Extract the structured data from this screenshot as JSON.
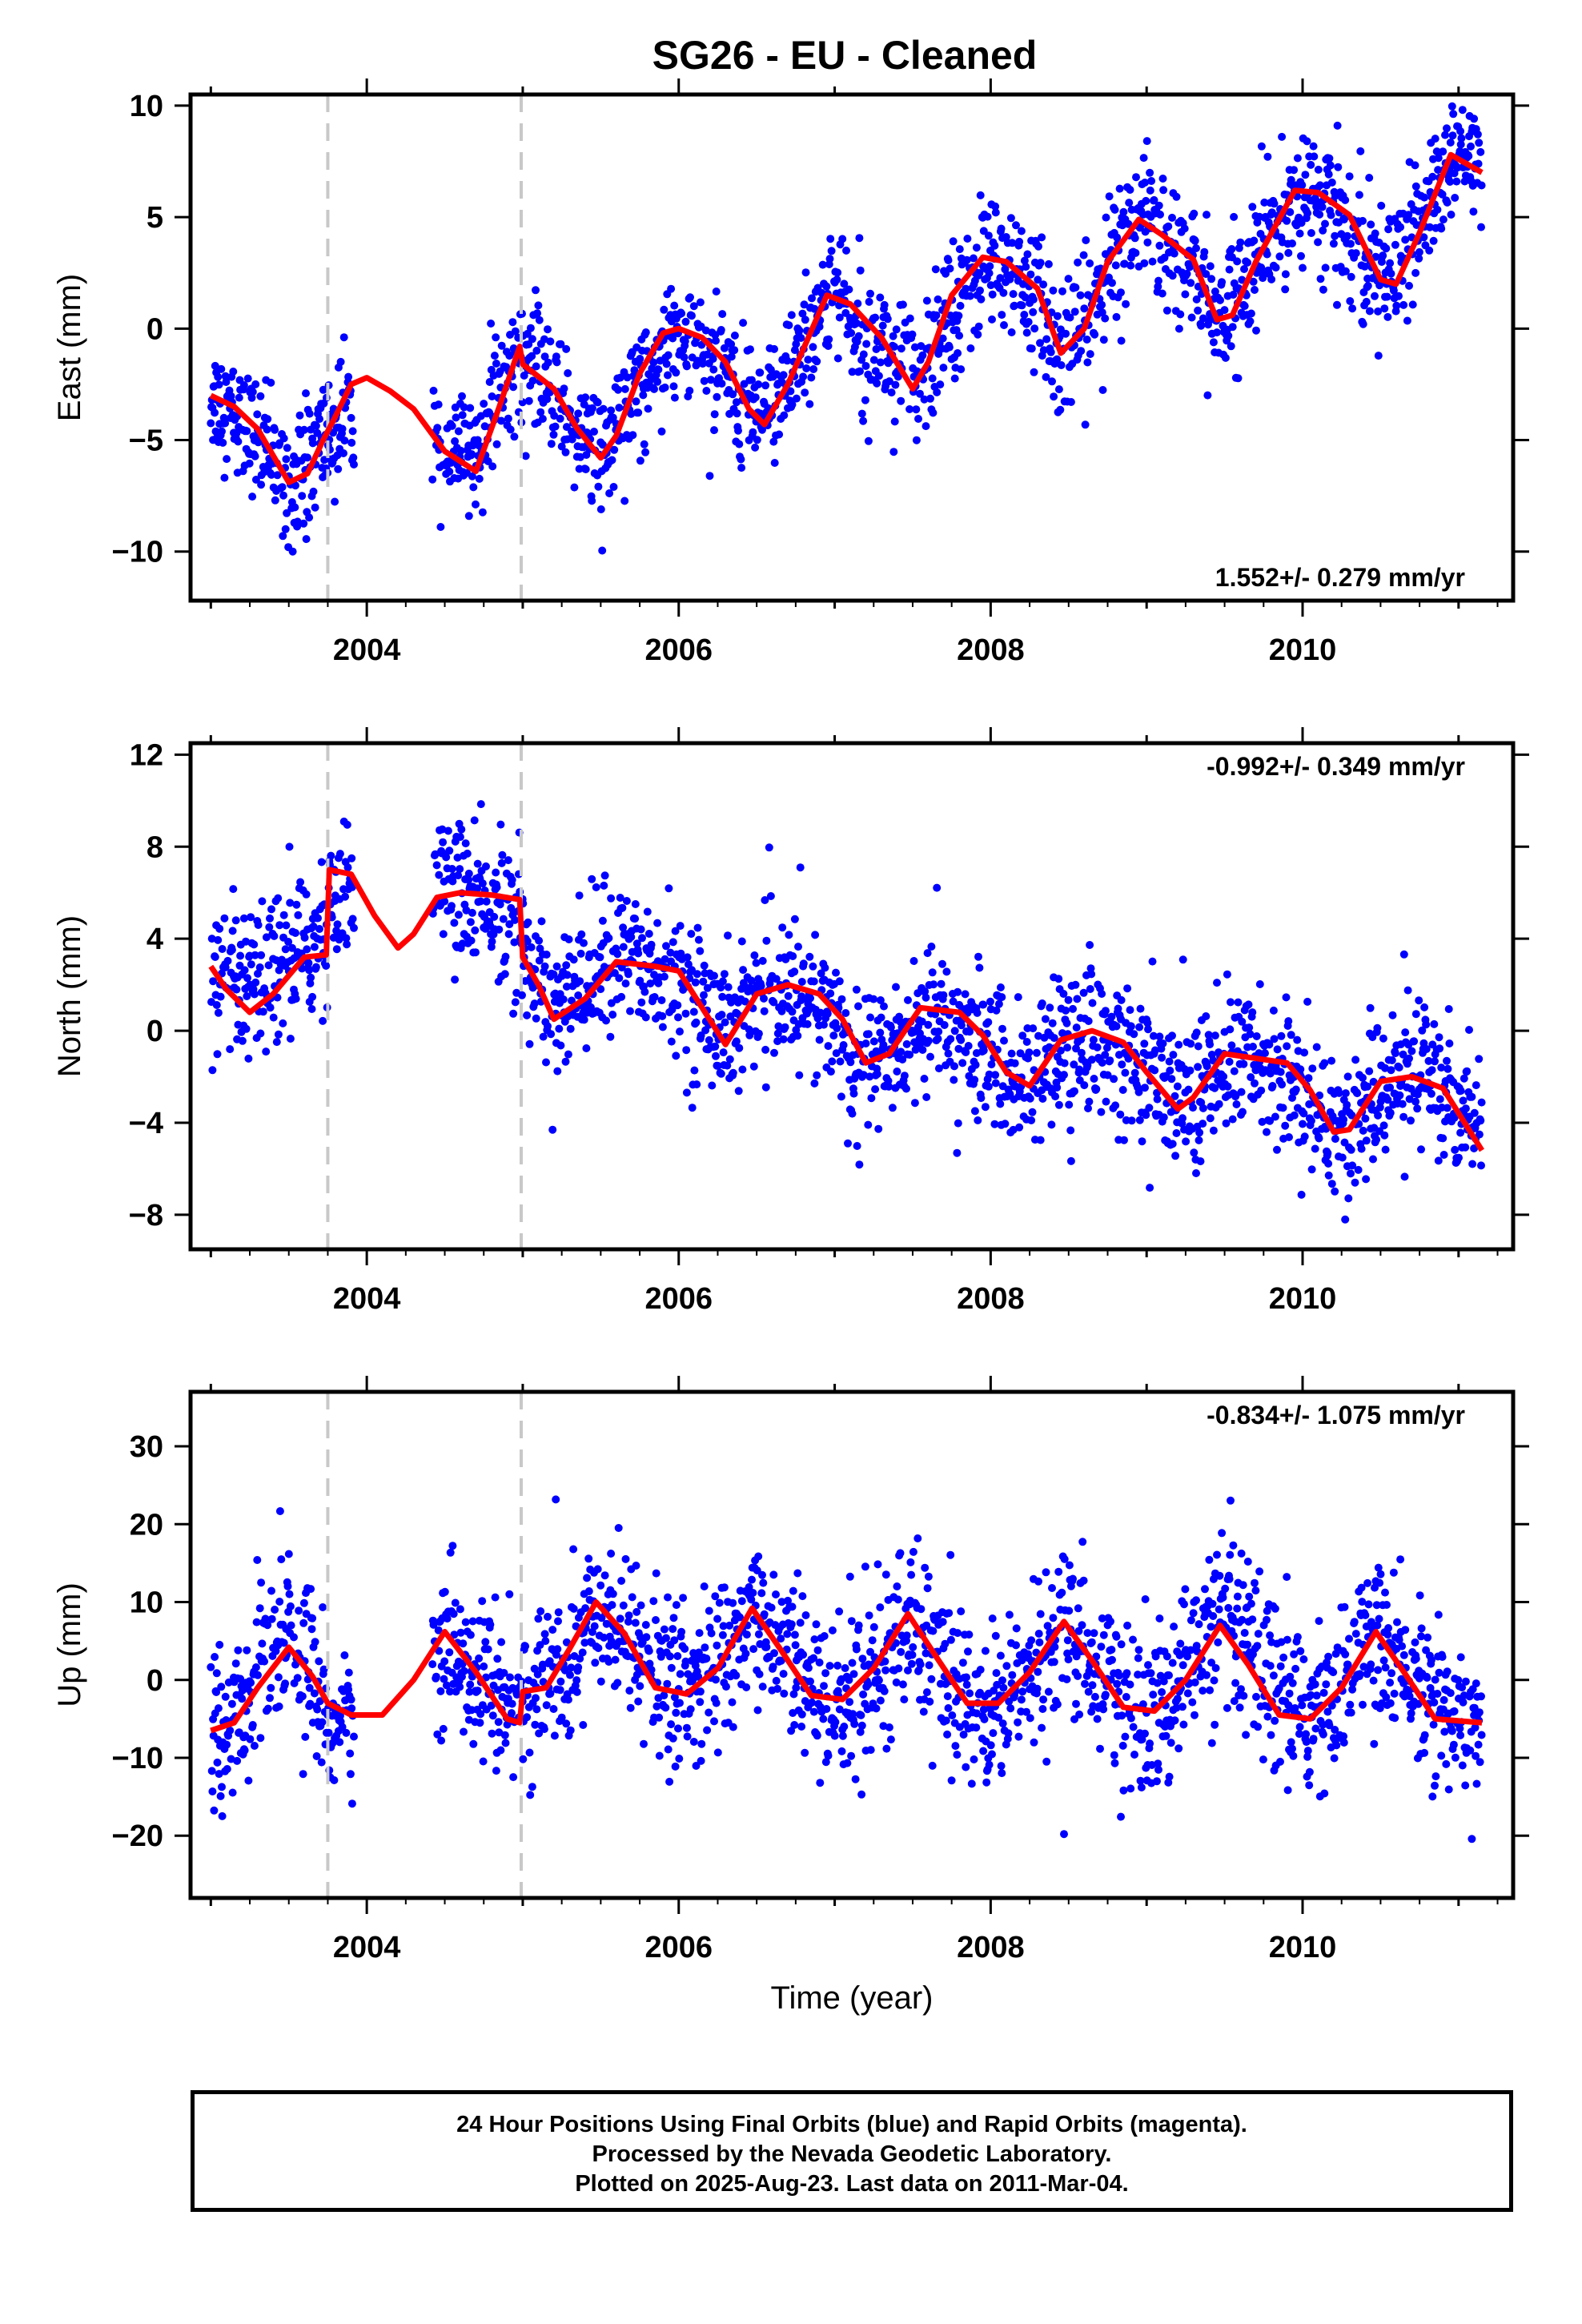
{
  "title": "SG26  - EU - Cleaned",
  "colors": {
    "points": "#0000ff",
    "fit": "#ff0000",
    "breaks": "#c8c8c8",
    "frame": "#000000"
  },
  "footer": {
    "line1": "24 Hour Positions Using Final Orbits (blue) and Rapid Orbits (magenta).",
    "line2": "Processed by the Nevada Geodetic Laboratory.",
    "line3": "Plotted on 2025-Aug-23. Last data on 2011-Mar-04."
  },
  "chart_data": [
    {
      "type": "scatter",
      "component": "east",
      "title": "SG26  - EU - Cleaned",
      "xlabel": "",
      "ylabel": "East (mm)",
      "xlim": [
        2002.87,
        2011.35
      ],
      "ylim": [
        -12.2,
        10.5
      ],
      "xticks": [
        2004,
        2006,
        2008,
        2010
      ],
      "yticks": [
        -10,
        -5,
        0,
        5,
        10
      ],
      "rate_label": "1.552+/- 0.279 mm/yr",
      "rate_position": "bottom-right",
      "break_lines": [
        2003.75,
        2004.99
      ],
      "fit_curve": {
        "x": [
          2003.0,
          2003.15,
          2003.3,
          2003.5,
          2003.62,
          2003.72,
          2003.78,
          2003.9,
          2004.0,
          2004.15,
          2004.3,
          2004.5,
          2004.7,
          2004.85,
          2004.98,
          2005.0,
          2005.2,
          2005.35,
          2005.5,
          2005.6,
          2005.75,
          2005.9,
          2006.0,
          2006.15,
          2006.3,
          2006.45,
          2006.55,
          2006.7,
          2006.95,
          2007.1,
          2007.3,
          2007.5,
          2007.6,
          2007.75,
          2007.95,
          2008.1,
          2008.3,
          2008.45,
          2008.6,
          2008.75,
          2008.95,
          2009.1,
          2009.3,
          2009.45,
          2009.55,
          2009.7,
          2009.95,
          2010.1,
          2010.3,
          2010.5,
          2010.6,
          2010.75,
          2010.95,
          2011.15
        ],
        "y": [
          -3.0,
          -3.5,
          -4.5,
          -6.9,
          -6.5,
          -5.0,
          -4.2,
          -2.5,
          -2.2,
          -2.8,
          -3.6,
          -5.5,
          -6.4,
          -3.5,
          -0.8,
          -1.6,
          -2.7,
          -4.5,
          -5.8,
          -4.8,
          -2.0,
          -0.2,
          0.0,
          -0.4,
          -1.5,
          -3.6,
          -4.3,
          -2.5,
          1.5,
          1.1,
          -0.4,
          -2.7,
          -1.5,
          1.5,
          3.2,
          3.0,
          1.8,
          -1.1,
          0.0,
          3.0,
          4.9,
          4.2,
          3.1,
          0.4,
          0.6,
          3.0,
          6.2,
          6.1,
          5.1,
          2.2,
          2.0,
          4.3,
          7.8,
          7.0
        ]
      },
      "points_by_year": [
        {
          "year": 2003.0,
          "mean": -3.0,
          "spread": 1.2
        },
        {
          "year": 2003.5,
          "mean": -7.0,
          "spread": 1.3
        },
        {
          "year": 2003.7,
          "mean": -5.0,
          "spread": 1.5
        },
        {
          "year": 2004.5,
          "mean": -6.4,
          "spread": 1.2
        },
        {
          "year": 2005.0,
          "mean": -0.8,
          "spread": 1.3
        },
        {
          "year": 2005.5,
          "mean": -5.8,
          "spread": 1.5
        },
        {
          "year": 2006.0,
          "mean": 0.0,
          "spread": 1.3
        },
        {
          "year": 2006.5,
          "mean": -4.2,
          "spread": 1.4
        },
        {
          "year": 2007.0,
          "mean": 1.6,
          "spread": 1.5
        },
        {
          "year": 2007.5,
          "mean": -2.5,
          "spread": 1.5
        },
        {
          "year": 2008.0,
          "mean": 3.2,
          "spread": 1.5
        },
        {
          "year": 2008.5,
          "mean": -1.0,
          "spread": 1.5
        },
        {
          "year": 2009.0,
          "mean": 4.8,
          "spread": 1.5
        },
        {
          "year": 2009.5,
          "mean": 0.4,
          "spread": 1.5
        },
        {
          "year": 2010.0,
          "mean": 6.2,
          "spread": 1.4
        },
        {
          "year": 2010.5,
          "mean": 2.0,
          "spread": 1.5
        },
        {
          "year": 2011.0,
          "mean": 7.8,
          "spread": 1.3
        }
      ]
    },
    {
      "type": "scatter",
      "component": "north",
      "title": "",
      "xlabel": "",
      "ylabel": "North (mm)",
      "xlim": [
        2002.87,
        2011.35
      ],
      "ylim": [
        -9.5,
        12.5
      ],
      "xticks": [
        2004,
        2006,
        2008,
        2010
      ],
      "yticks": [
        -8,
        -4,
        0,
        4,
        8,
        12
      ],
      "rate_label": "-0.992+/- 0.349 mm/yr",
      "rate_position": "top-right",
      "break_lines": [
        2003.75,
        2004.99
      ],
      "fit_curve": {
        "x": [
          2003.0,
          2003.1,
          2003.25,
          2003.4,
          2003.6,
          2003.74,
          2003.76,
          2003.9,
          2004.05,
          2004.2,
          2004.3,
          2004.45,
          2004.6,
          2004.8,
          2004.98,
          2005.0,
          2005.1,
          2005.2,
          2005.4,
          2005.6,
          2005.85,
          2006.0,
          2006.15,
          2006.3,
          2006.5,
          2006.7,
          2006.9,
          2007.05,
          2007.2,
          2007.35,
          2007.55,
          2007.8,
          2007.95,
          2008.1,
          2008.25,
          2008.45,
          2008.65,
          2008.85,
          2009.0,
          2009.2,
          2009.3,
          2009.5,
          2009.7,
          2009.9,
          2010.05,
          2010.2,
          2010.3,
          2010.5,
          2010.7,
          2010.9,
          2011.15
        ],
        "y": [
          2.8,
          1.8,
          0.8,
          1.6,
          3.2,
          3.3,
          7.0,
          6.8,
          5.0,
          3.6,
          4.2,
          5.8,
          6.0,
          5.9,
          5.7,
          3.2,
          2.0,
          0.5,
          1.4,
          3.0,
          2.8,
          2.6,
          1.0,
          -0.6,
          1.6,
          2.0,
          1.6,
          0.5,
          -1.4,
          -1.0,
          1.0,
          0.8,
          -0.2,
          -1.8,
          -2.4,
          -0.4,
          0.0,
          -0.5,
          -1.8,
          -3.4,
          -2.9,
          -1.0,
          -1.2,
          -1.4,
          -2.6,
          -4.4,
          -4.3,
          -2.2,
          -2.0,
          -2.5,
          -5.2
        ]
      },
      "points_by_year": [
        {
          "year": 2003.0,
          "mean": 1.5,
          "spread": 1.5
        },
        {
          "year": 2003.5,
          "mean": 3.5,
          "spread": 1.6
        },
        {
          "year": 2003.8,
          "mean": 5.5,
          "spread": 1.5
        },
        {
          "year": 2004.6,
          "mean": 6.5,
          "spread": 1.5
        },
        {
          "year": 2005.2,
          "mean": 1.5,
          "spread": 1.6
        },
        {
          "year": 2005.6,
          "mean": 4.0,
          "spread": 1.5
        },
        {
          "year": 2006.2,
          "mean": 0.5,
          "spread": 1.6
        },
        {
          "year": 2006.6,
          "mean": 2.0,
          "spread": 1.6
        },
        {
          "year": 2007.2,
          "mean": -1.5,
          "spread": 1.6
        },
        {
          "year": 2007.6,
          "mean": 0.3,
          "spread": 1.6
        },
        {
          "year": 2008.2,
          "mean": -2.5,
          "spread": 1.6
        },
        {
          "year": 2008.7,
          "mean": -0.5,
          "spread": 1.6
        },
        {
          "year": 2009.2,
          "mean": -2.8,
          "spread": 1.6
        },
        {
          "year": 2009.7,
          "mean": -1.2,
          "spread": 1.6
        },
        {
          "year": 2010.2,
          "mean": -4.8,
          "spread": 1.5
        },
        {
          "year": 2010.7,
          "mean": -1.5,
          "spread": 1.6
        },
        {
          "year": 2011.1,
          "mean": -3.0,
          "spread": 1.6
        }
      ]
    },
    {
      "type": "scatter",
      "component": "up",
      "title": "",
      "xlabel": "Time (year)",
      "ylabel": "Up (mm)",
      "xlim": [
        2002.87,
        2011.35
      ],
      "ylim": [
        -28,
        37
      ],
      "xticks": [
        2004,
        2006,
        2008,
        2010
      ],
      "yticks": [
        -20,
        -10,
        0,
        10,
        20,
        30
      ],
      "rate_label": "-0.834+/- 1.075 mm/yr",
      "rate_position": "top-right",
      "break_lines": [
        2003.75,
        2004.99
      ],
      "fit_curve": {
        "x": [
          2003.0,
          2003.15,
          2003.3,
          2003.5,
          2003.65,
          2003.75,
          2003.9,
          2004.1,
          2004.3,
          2004.5,
          2004.7,
          2004.9,
          2004.98,
          2005.0,
          2005.15,
          2005.3,
          2005.47,
          2005.65,
          2005.85,
          2006.05,
          2006.25,
          2006.47,
          2006.65,
          2006.85,
          2007.05,
          2007.25,
          2007.47,
          2007.65,
          2007.85,
          2008.05,
          2008.25,
          2008.47,
          2008.65,
          2008.85,
          2009.05,
          2009.25,
          2009.47,
          2009.65,
          2009.85,
          2010.05,
          2010.25,
          2010.47,
          2010.65,
          2010.85,
          2011.15
        ],
        "y": [
          -6.5,
          -5.5,
          -1.0,
          4.2,
          0.5,
          -3.0,
          -4.5,
          -4.5,
          0.0,
          6.2,
          1.0,
          -5.0,
          -5.5,
          -1.5,
          -1.0,
          4.0,
          10.0,
          6.0,
          -1.0,
          -1.8,
          1.5,
          9.2,
          4.0,
          -2.0,
          -2.5,
          1.5,
          8.5,
          3.0,
          -3.0,
          -3.0,
          1.0,
          7.5,
          2.5,
          -3.5,
          -4.0,
          0.0,
          7.0,
          2.0,
          -4.5,
          -5.0,
          -1.0,
          6.2,
          1.0,
          -5.0,
          -5.5
        ]
      },
      "points_by_year": [
        {
          "year": 2003.0,
          "mean": -8.0,
          "spread": 4.5
        },
        {
          "year": 2003.5,
          "mean": 8.0,
          "spread": 5.5
        },
        {
          "year": 2003.75,
          "mean": -4.0,
          "spread": 5.0
        },
        {
          "year": 2004.6,
          "mean": 2.0,
          "spread": 5.0
        },
        {
          "year": 2005.0,
          "mean": -2.0,
          "spread": 5.0
        },
        {
          "year": 2005.5,
          "mean": 8.5,
          "spread": 5.0
        },
        {
          "year": 2006.0,
          "mean": -2.0,
          "spread": 5.0
        },
        {
          "year": 2006.5,
          "mean": 7.0,
          "spread": 5.0
        },
        {
          "year": 2007.0,
          "mean": -5.0,
          "spread": 5.5
        },
        {
          "year": 2007.5,
          "mean": 6.0,
          "spread": 5.5
        },
        {
          "year": 2008.0,
          "mean": -4.0,
          "spread": 5.0
        },
        {
          "year": 2008.5,
          "mean": 6.0,
          "spread": 5.5
        },
        {
          "year": 2009.0,
          "mean": -6.0,
          "spread": 5.0
        },
        {
          "year": 2009.5,
          "mean": 8.0,
          "spread": 6.0
        },
        {
          "year": 2010.0,
          "mean": -4.0,
          "spread": 5.0
        },
        {
          "year": 2010.5,
          "mean": 5.0,
          "spread": 5.0
        },
        {
          "year": 2011.0,
          "mean": -5.0,
          "spread": 4.5
        }
      ]
    }
  ]
}
